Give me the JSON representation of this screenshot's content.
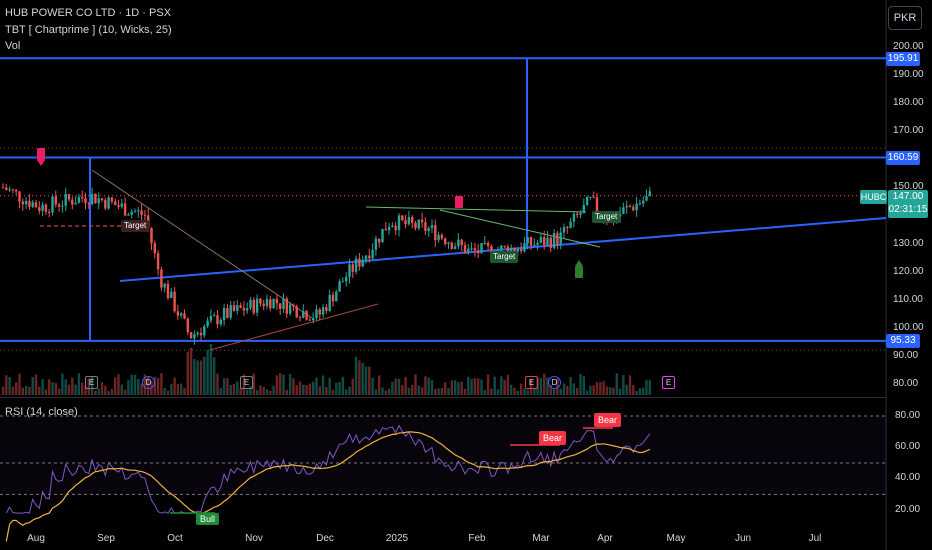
{
  "header": {
    "title": "HUB POWER CO LTD · 1D · PSX",
    "indicator": "TBT [ Chartprime ] (10, Wicks,  25)",
    "volume": "Vol",
    "currency_button": "PKR"
  },
  "price_axis": {
    "ticks": [
      "200.00",
      "190.00",
      "180.00",
      "170.00",
      "150.00",
      "140.00",
      "130.00",
      "120.00",
      "110.00",
      "100.00",
      "90.00",
      "80.00"
    ],
    "badges": [
      "195.91",
      "160.59",
      "95.33"
    ],
    "symbol_label": "HUBC",
    "last_price": "147.00",
    "countdown": "02:31:15"
  },
  "time_axis": {
    "labels": [
      "Aug",
      "Sep",
      "Oct",
      "Nov",
      "Dec",
      "2025",
      "Feb",
      "Mar",
      "Apr",
      "May",
      "Jun",
      "Jul"
    ]
  },
  "rsi": {
    "title": "RSI (14, close)",
    "ticks": [
      "80.00",
      "60.00",
      "40.00",
      "20.00"
    ],
    "bear_labels": [
      "Bear",
      "Bear"
    ],
    "bull_label": "Bull"
  },
  "markers": {
    "target_labels": [
      "Target",
      "Target",
      "Target"
    ],
    "events": [
      "E",
      "D",
      "E",
      "E",
      "D",
      "E"
    ]
  },
  "colors": {
    "background": "#000000",
    "up": "#26a69a",
    "down": "#ef5350",
    "line_blue": "#2962ff",
    "rsi_line": "#7e57c2",
    "rsi_ma": "#f0b23e"
  },
  "chart_data": {
    "type": "candlestick",
    "symbol": "HUBC",
    "x": [
      "Aug",
      "Sep",
      "Oct",
      "Nov",
      "Dec",
      "2025",
      "Feb",
      "Mar",
      "Apr",
      "May",
      "Jun",
      "Jul"
    ],
    "close_approx": [
      148,
      143,
      96,
      113,
      118,
      132,
      125,
      130,
      140,
      147
    ],
    "price_levels": [
      195.91,
      160.59,
      95.33
    ],
    "last_price": 147.0,
    "ylim": [
      78,
      205
    ],
    "rsi_ylim": [
      15,
      85
    ],
    "rsi_levels": [
      80,
      50,
      30
    ]
  }
}
